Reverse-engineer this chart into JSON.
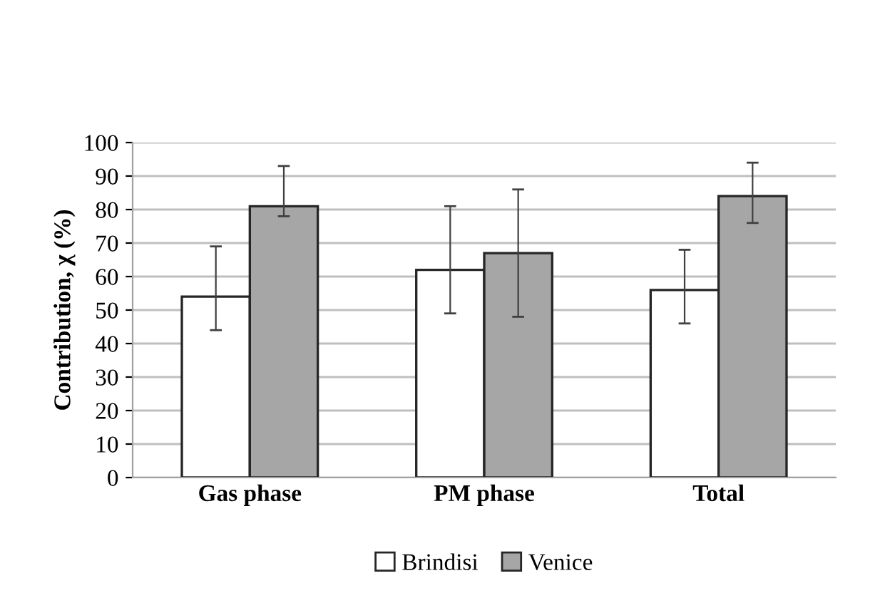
{
  "chart_data": {
    "type": "bar",
    "ylabel": "Contribution, χ (%)",
    "categories": [
      "Gas phase",
      "PM phase",
      "Total"
    ],
    "series": [
      {
        "name": "Brindisi",
        "color": "#ffffff",
        "values": [
          54,
          62,
          56
        ],
        "errors": [
          [
            44,
            69
          ],
          [
            49,
            81
          ],
          [
            46,
            68
          ]
        ]
      },
      {
        "name": "Venice",
        "color": "#a6a6a6",
        "values": [
          81,
          67,
          84
        ],
        "errors": [
          [
            78,
            93
          ],
          [
            48,
            86
          ],
          [
            76,
            94
          ]
        ]
      }
    ],
    "ylim": [
      0,
      100
    ],
    "yticks": [
      0,
      10,
      20,
      30,
      40,
      50,
      60,
      70,
      80,
      90,
      100
    ],
    "grid": "y",
    "legend": "bottom"
  }
}
